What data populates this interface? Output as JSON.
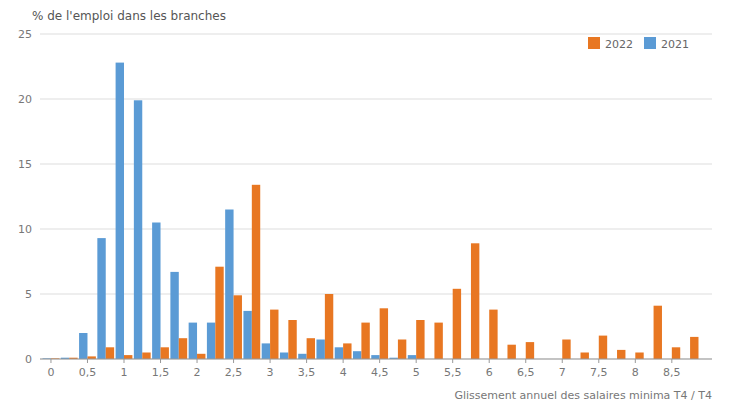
{
  "chart_data": {
    "type": "bar",
    "x": [
      0.0,
      0.25,
      0.5,
      0.75,
      1.0,
      1.25,
      1.5,
      1.75,
      2.0,
      2.25,
      2.5,
      2.75,
      3.0,
      3.25,
      3.5,
      3.75,
      4.0,
      4.25,
      4.5,
      4.75,
      5.0,
      5.25,
      5.5,
      5.75,
      6.0,
      6.25,
      6.5,
      6.75,
      7.0,
      7.25,
      7.5,
      7.75,
      8.0,
      8.25,
      8.5,
      8.75
    ],
    "series": [
      {
        "name": "2021",
        "color": "#5B9BD5",
        "values": [
          0.05,
          0.1,
          2.0,
          9.3,
          22.8,
          19.9,
          10.5,
          6.7,
          2.8,
          2.8,
          11.5,
          3.7,
          1.2,
          0.5,
          0.4,
          1.5,
          0.9,
          0.6,
          0.3,
          0.1,
          0.3,
          0.0,
          0.0,
          0.0,
          0.0,
          0.0,
          0.0,
          0.0,
          0.0,
          0.0,
          0.0,
          0.0,
          0.0,
          0.0,
          0.0,
          0.0
        ]
      },
      {
        "name": "2022",
        "color": "#E87722",
        "values": [
          0.05,
          0.1,
          0.2,
          0.9,
          0.3,
          0.5,
          0.9,
          1.6,
          0.4,
          7.1,
          4.9,
          13.4,
          3.8,
          3.0,
          1.6,
          5.0,
          1.2,
          2.8,
          3.9,
          1.5,
          3.0,
          2.8,
          5.4,
          8.9,
          3.8,
          1.1,
          1.3,
          0.0,
          1.5,
          0.5,
          1.8,
          0.7,
          0.5,
          4.1,
          0.9,
          1.7
        ]
      }
    ],
    "x_label": "Glissement annuel des salaires minima T4 / T4",
    "y_label": "% de l'emploi dans les branches",
    "xlim": [
      -0.15,
      9.05
    ],
    "xticks": [
      0,
      {
        "value": 0.5,
        "label": "0,5"
      },
      1,
      {
        "value": 1.5,
        "label": "1,5"
      },
      2,
      {
        "value": 2.5,
        "label": "2,5"
      },
      3,
      {
        "value": 3.5,
        "label": "3,5"
      },
      4,
      {
        "value": 4.5,
        "label": "4,5"
      },
      5,
      {
        "value": 5.5,
        "label": "5,5"
      },
      6,
      {
        "value": 6.5,
        "label": "6,5"
      },
      7,
      {
        "value": 7.5,
        "label": "7,5"
      },
      8,
      {
        "value": 8.5,
        "label": "8,5"
      }
    ],
    "ylim": [
      0,
      25
    ],
    "yticks": [
      0,
      5,
      10,
      15,
      20,
      25
    ],
    "grid": true,
    "legend": "upper right"
  }
}
